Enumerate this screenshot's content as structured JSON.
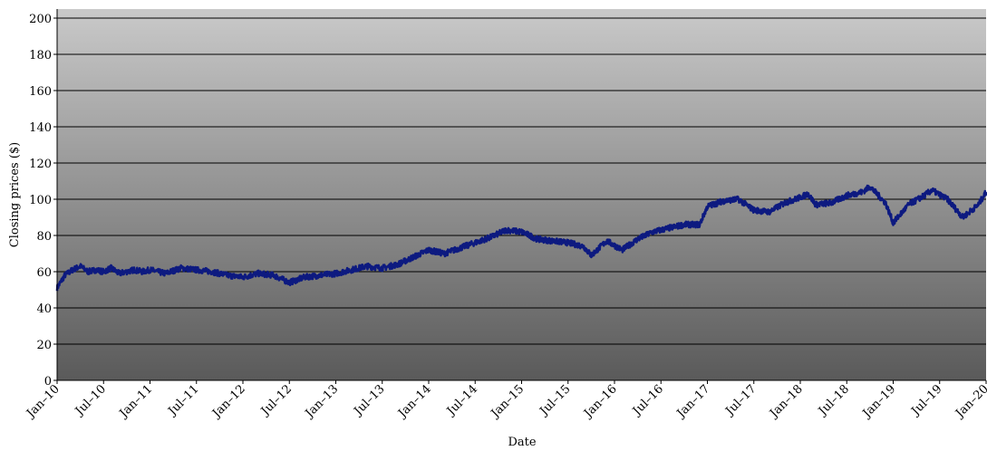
{
  "chart_data": {
    "type": "line",
    "title": "",
    "xlabel": "Date",
    "ylabel": "Closing prices ($)",
    "ylim": [
      0,
      200
    ],
    "yticks": [
      0,
      20,
      40,
      60,
      80,
      100,
      120,
      140,
      160,
      180,
      200
    ],
    "x_tick_labels": [
      "Jan–10",
      "Jul–10",
      "Jan–11",
      "Jul–11",
      "Jan–12",
      "Jul–12",
      "Jan–13",
      "Jul–13",
      "Jan–14",
      "Jul–14",
      "Jan–15",
      "Jul–15",
      "Jan–16",
      "Jul–16",
      "Jan–17",
      "Jul–17",
      "Jan–18",
      "Jul–18",
      "Jan–19",
      "Jul–19",
      "Jan–20"
    ],
    "grid": "horizontal",
    "legend": "none",
    "series": [
      {
        "color": "#0d1a80",
        "points": [
          [
            "2010-01",
            51
          ],
          [
            "2010-02",
            58
          ],
          [
            "2010-03",
            61
          ],
          [
            "2010-04",
            63
          ],
          [
            "2010-05",
            60
          ],
          [
            "2010-06",
            61
          ],
          [
            "2010-07",
            60
          ],
          [
            "2010-08",
            62
          ],
          [
            "2010-09",
            59
          ],
          [
            "2010-10",
            60
          ],
          [
            "2010-11",
            61
          ],
          [
            "2010-12",
            60
          ],
          [
            "2011-01",
            61
          ],
          [
            "2011-03",
            59
          ],
          [
            "2011-05",
            62
          ],
          [
            "2011-07",
            61
          ],
          [
            "2011-09",
            60
          ],
          [
            "2011-11",
            58
          ],
          [
            "2012-01",
            57
          ],
          [
            "2012-03",
            59
          ],
          [
            "2012-05",
            58
          ],
          [
            "2012-07",
            54
          ],
          [
            "2012-09",
            57
          ],
          [
            "2012-11",
            58
          ],
          [
            "2013-01",
            59
          ],
          [
            "2013-03",
            61
          ],
          [
            "2013-05",
            63
          ],
          [
            "2013-07",
            62
          ],
          [
            "2013-09",
            64
          ],
          [
            "2013-11",
            68
          ],
          [
            "2014-01",
            72
          ],
          [
            "2014-03",
            70
          ],
          [
            "2014-05",
            73
          ],
          [
            "2014-07",
            76
          ],
          [
            "2014-09",
            79
          ],
          [
            "2014-11",
            83
          ],
          [
            "2015-01",
            82
          ],
          [
            "2015-03",
            78
          ],
          [
            "2015-05",
            77
          ],
          [
            "2015-07",
            76
          ],
          [
            "2015-09",
            74
          ],
          [
            "2015-10",
            69
          ],
          [
            "2015-12",
            77
          ],
          [
            "2016-02",
            72
          ],
          [
            "2016-04",
            78
          ],
          [
            "2016-06",
            82
          ],
          [
            "2016-08",
            84
          ],
          [
            "2016-10",
            86
          ],
          [
            "2016-12",
            86
          ],
          [
            "2017-01",
            96
          ],
          [
            "2017-03",
            99
          ],
          [
            "2017-05",
            100
          ],
          [
            "2017-07",
            94
          ],
          [
            "2017-09",
            93
          ],
          [
            "2017-11",
            98
          ],
          [
            "2018-01",
            101
          ],
          [
            "2018-02",
            103
          ],
          [
            "2018-03",
            97
          ],
          [
            "2018-05",
            98
          ],
          [
            "2018-07",
            102
          ],
          [
            "2018-09",
            104
          ],
          [
            "2018-10",
            107
          ],
          [
            "2018-12",
            98
          ],
          [
            "2019-01",
            87
          ],
          [
            "2019-03",
            97
          ],
          [
            "2019-05",
            102
          ],
          [
            "2019-06",
            105
          ],
          [
            "2019-08",
            100
          ],
          [
            "2019-10",
            90
          ],
          [
            "2019-12",
            97
          ],
          [
            "2020-01",
            104
          ]
        ]
      }
    ]
  }
}
